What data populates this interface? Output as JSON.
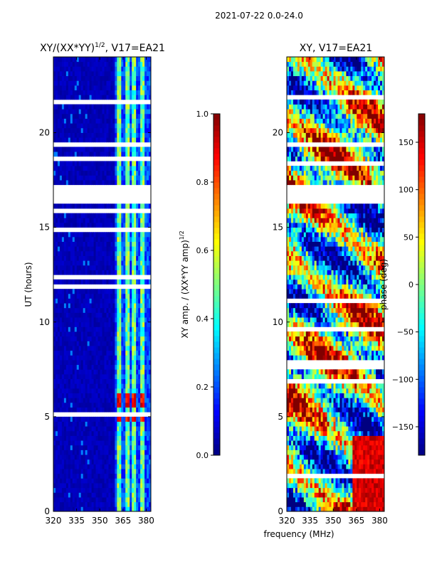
{
  "figure": {
    "suptitle": "2021-07-22 0.0-24.0",
    "xlabel_shared": "frequency (MHz)"
  },
  "chart_data": [
    {
      "type": "heatmap",
      "title": "XY/(XX*YY)",
      "title_superscript": "1/2",
      "title_suffix": ", V17=EA21",
      "xlabel": "frequency (MHz)",
      "ylabel": "UT (hours)",
      "xlim": [
        320,
        383
      ],
      "ylim": [
        0,
        24
      ],
      "xticks": [
        320,
        335,
        350,
        365,
        380
      ],
      "yticks": [
        0,
        5,
        10,
        15,
        20
      ],
      "colorbar": {
        "label": "XY amp. / (XX*YY amp)",
        "label_superscript": "1/2",
        "range": [
          0.0,
          1.0
        ],
        "ticks": [
          0.0,
          0.2,
          0.4,
          0.6,
          0.8,
          1.0
        ],
        "tick_labels": [
          "0.0",
          "0.2",
          "0.4",
          "0.6",
          "0.8",
          "1.0"
        ],
        "colormap": "jet"
      },
      "gaps_hours": [
        [
          16.3,
          17.3
        ],
        [
          19.3,
          19.5
        ]
      ],
      "bright_channels_mhz": [
        [
          361,
          364
        ],
        [
          366,
          369
        ],
        [
          371,
          374
        ],
        [
          376,
          379
        ]
      ],
      "hot_bands_hours": [
        [
          4.8,
          5.1
        ],
        [
          5.6,
          5.9
        ],
        [
          6.0,
          6.3
        ]
      ]
    },
    {
      "type": "heatmap",
      "title": "XY, V17=EA21",
      "xlabel": "frequency (MHz)",
      "ylabel": "phase (deg)",
      "xlim": [
        320,
        383
      ],
      "ylim": [
        0,
        24
      ],
      "xticks": [
        320,
        335,
        350,
        365,
        380
      ],
      "yticks": [
        0,
        5,
        10,
        15,
        20
      ],
      "colorbar": {
        "label": "phase (deg)",
        "range": [
          -180,
          180
        ],
        "ticks": [
          -150,
          -100,
          -50,
          0,
          50,
          100,
          150
        ],
        "tick_labels": [
          "−150",
          "−100",
          "−50",
          "0",
          "50",
          "100",
          "150"
        ],
        "colormap": "jet"
      },
      "gaps_hours": [
        [
          16.3,
          17.3
        ],
        [
          19.3,
          19.5
        ]
      ]
    }
  ]
}
